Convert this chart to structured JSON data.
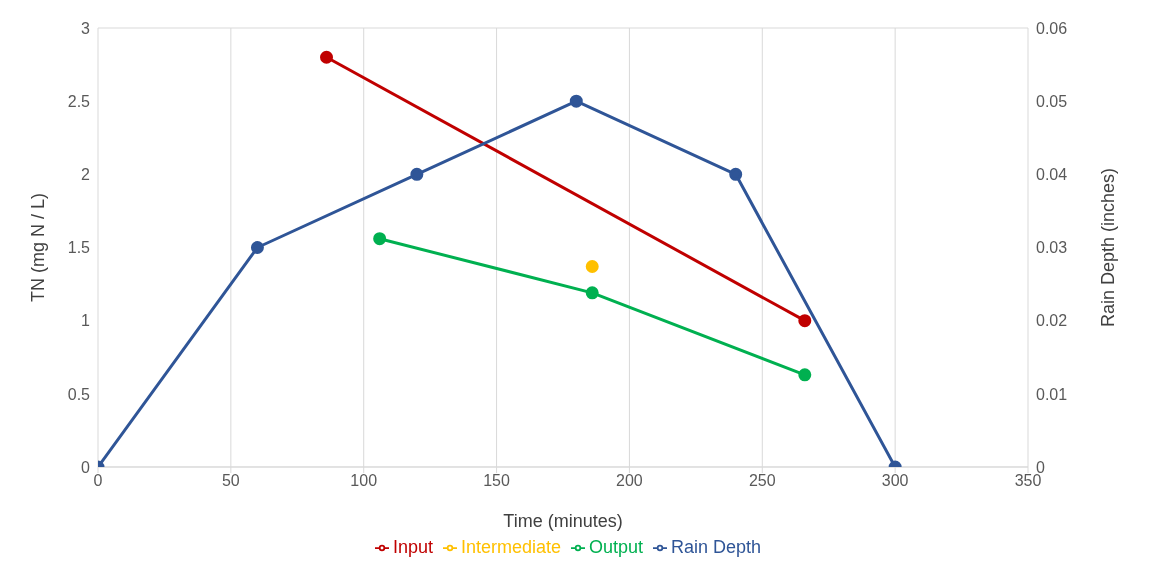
{
  "chart_data": {
    "type": "line",
    "xlabel": "Time (minutes)",
    "ylabel": "TN (mg N / L)",
    "y2label": "Rain Depth (inches)",
    "xlim": [
      0,
      350
    ],
    "xticks": [
      0,
      50,
      100,
      150,
      200,
      250,
      300,
      350
    ],
    "ylim": [
      0,
      3
    ],
    "yticks": [
      0,
      0.5,
      1,
      1.5,
      2,
      2.5,
      3
    ],
    "y2lim": [
      0,
      0.06
    ],
    "y2ticks": [
      0,
      0.01,
      0.02,
      0.03,
      0.04,
      0.05,
      0.06
    ],
    "grid": true,
    "legend": "bottom",
    "marker": "circle",
    "series": [
      {
        "name": "Input",
        "color": "#c00000",
        "x": [
          86,
          266
        ],
        "values": [
          2.8,
          1.0
        ]
      },
      {
        "name": "Output",
        "color": "#00b050",
        "x": [
          106,
          186,
          266
        ],
        "values": [
          1.56,
          1.19,
          0.63
        ]
      },
      {
        "name": "Intermediate",
        "color": "#ffc000",
        "x": [
          186
        ],
        "values": [
          1.37
        ]
      },
      {
        "name": "Rain Depth",
        "color": "#2f5597",
        "axis": "y2",
        "x": [
          0,
          60,
          120,
          180,
          240,
          300
        ],
        "values": [
          0,
          0.03,
          0.04,
          0.05,
          0.04,
          0
        ]
      }
    ]
  }
}
